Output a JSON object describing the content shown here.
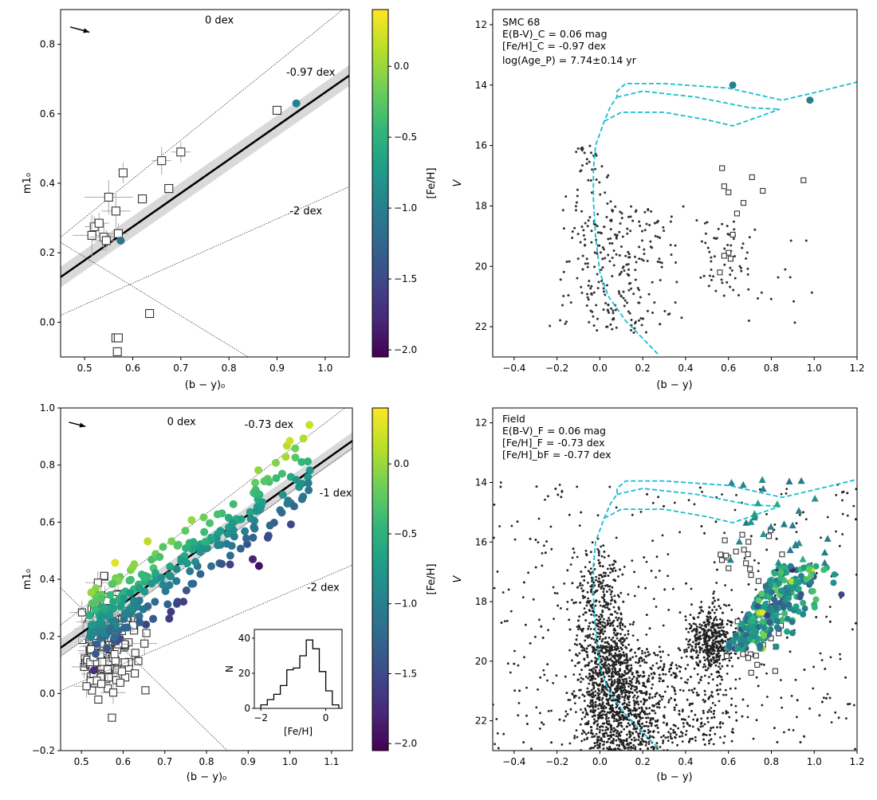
{
  "chart_data": [
    {
      "id": "top_left",
      "type": "scatter",
      "xlabel": "(b − y)₀",
      "ylabel": "m1₀",
      "xlim": [
        0.45,
        1.05
      ],
      "ylim": [
        -0.1,
        0.9
      ],
      "xticks": [
        0.5,
        0.6,
        0.7,
        0.8,
        0.9,
        1.0
      ],
      "yticks": [
        0.0,
        0.2,
        0.4,
        0.6,
        0.8
      ],
      "reference_lines": [
        {
          "label": "0 dex",
          "x1": 0.45,
          "y1": 0.245,
          "x2": 1.05,
          "y2": 0.915,
          "label_x": 0.78,
          "label_y": 0.86
        },
        {
          "label": "-0.97 dex",
          "x1": 0.45,
          "y1": 0.13,
          "x2": 1.05,
          "y2": 0.71,
          "label_x": 0.97,
          "label_y": 0.71,
          "fit": true
        },
        {
          "label": "-2 dex",
          "x1": 0.45,
          "y1": 0.02,
          "x2": 1.05,
          "y2": 0.39,
          "label_x": 0.96,
          "label_y": 0.31
        }
      ],
      "diagonal_cut": {
        "x1": 0.45,
        "y1": 0.23,
        "x2": 0.84,
        "y2": -0.1
      },
      "squares": [
        {
          "x": 0.58,
          "y": 0.43,
          "ex": 0.0,
          "ey": 0.03
        },
        {
          "x": 0.66,
          "y": 0.465,
          "ex": 0.02,
          "ey": 0.04
        },
        {
          "x": 0.7,
          "y": 0.49,
          "ex": 0.02,
          "ey": 0.03
        },
        {
          "x": 0.675,
          "y": 0.385,
          "ex": 0.0,
          "ey": 0.0
        },
        {
          "x": 0.55,
          "y": 0.36,
          "ex": 0.05,
          "ey": 0.05
        },
        {
          "x": 0.565,
          "y": 0.32,
          "ex": 0.03,
          "ey": 0.05
        },
        {
          "x": 0.62,
          "y": 0.355,
          "ex": 0.0,
          "ey": 0.0
        },
        {
          "x": 0.52,
          "y": 0.275,
          "ex": 0.02,
          "ey": 0.03
        },
        {
          "x": 0.53,
          "y": 0.285,
          "ex": 0.02,
          "ey": 0.03
        },
        {
          "x": 0.515,
          "y": 0.25,
          "ex": 0.04,
          "ey": 0.06
        },
        {
          "x": 0.54,
          "y": 0.245,
          "ex": 0.03,
          "ey": 0.04
        },
        {
          "x": 0.545,
          "y": 0.235,
          "ex": 0.03,
          "ey": 0.03
        },
        {
          "x": 0.57,
          "y": 0.255,
          "ex": 0.02,
          "ey": 0.03
        },
        {
          "x": 0.9,
          "y": 0.61,
          "ex": 0.0,
          "ey": 0.0
        },
        {
          "x": 0.635,
          "y": 0.025,
          "ex": 0.0,
          "ey": 0.0
        },
        {
          "x": 0.565,
          "y": -0.045,
          "ex": 0.0,
          "ey": 0.0
        },
        {
          "x": 0.57,
          "y": -0.045,
          "ex": 0.0,
          "ey": 0.0
        },
        {
          "x": 0.568,
          "y": -0.085,
          "ex": 0.0,
          "ey": 0.0
        }
      ],
      "colored_points": [
        {
          "x": 0.94,
          "y": 0.63,
          "feh": -0.97
        },
        {
          "x": 0.575,
          "y": 0.235,
          "feh": -1.1
        }
      ],
      "arrow": {
        "x1": 0.47,
        "y1": 0.85,
        "x2": 0.51,
        "y2": 0.835
      },
      "colorbar": {
        "label": "[Fe/H]",
        "min": -2.05,
        "max": 0.4,
        "ticks": [
          0.0,
          -0.5,
          -1.0,
          -1.5,
          -2.0
        ],
        "tick_labels": [
          "0.0",
          "−0.5",
          "−1.0",
          "−1.5",
          "−2.0"
        ]
      }
    },
    {
      "id": "top_right",
      "type": "scatter",
      "xlabel": "(b − y)",
      "ylabel": "V",
      "xlim": [
        -0.5,
        1.2
      ],
      "ylim": [
        23.0,
        11.5
      ],
      "xticks": [
        -0.4,
        -0.2,
        0.0,
        0.2,
        0.4,
        0.6,
        0.8,
        1.0,
        1.2
      ],
      "yticks": [
        12,
        14,
        16,
        18,
        20,
        22
      ],
      "annotations": [
        "SMC 68",
        "E(B-V)_C = 0.06 mag",
        "[Fe/H]_C = -0.97 dex",
        "log(Age_P) = 7.74±0.14 yr"
      ],
      "squares": [
        {
          "x": 0.57,
          "y": 16.75
        },
        {
          "x": 0.71,
          "y": 17.05
        },
        {
          "x": 0.95,
          "y": 17.15
        },
        {
          "x": 0.58,
          "y": 17.35
        },
        {
          "x": 0.6,
          "y": 17.55
        },
        {
          "x": 0.76,
          "y": 17.5
        },
        {
          "x": 0.67,
          "y": 17.9
        },
        {
          "x": 0.64,
          "y": 18.25
        },
        {
          "x": 0.62,
          "y": 18.95
        },
        {
          "x": 0.6,
          "y": 19.55
        },
        {
          "x": 0.61,
          "y": 19.75
        },
        {
          "x": 0.58,
          "y": 19.65
        },
        {
          "x": 0.56,
          "y": 20.2
        }
      ],
      "colored_points": [
        {
          "x": 0.62,
          "y": 14.0,
          "feh": -0.97
        },
        {
          "x": 0.98,
          "y": 14.5,
          "feh": -0.97
        }
      ],
      "isochrone": [
        {
          "x": 0.27,
          "y": 22.9
        },
        {
          "x": 0.12,
          "y": 21.8
        },
        {
          "x": 0.04,
          "y": 21.0
        },
        {
          "x": 0.0,
          "y": 20.2
        },
        {
          "x": -0.02,
          "y": 19.0
        },
        {
          "x": -0.03,
          "y": 17.8
        },
        {
          "x": -0.03,
          "y": 16.8
        },
        {
          "x": -0.02,
          "y": 16.0
        },
        {
          "x": 0.02,
          "y": 15.2
        },
        {
          "x": 0.05,
          "y": 14.7
        },
        {
          "x": 0.08,
          "y": 14.4
        },
        {
          "x": 0.08,
          "y": 14.2
        },
        {
          "x": 0.12,
          "y": 13.95
        },
        {
          "x": 0.3,
          "y": 13.95
        },
        {
          "x": 0.6,
          "y": 14.1
        },
        {
          "x": 0.85,
          "y": 14.5
        },
        {
          "x": 1.0,
          "y": 14.25
        },
        {
          "x": 1.2,
          "y": 13.9
        }
      ],
      "isochrone2": [
        {
          "x": 0.08,
          "y": 14.4
        },
        {
          "x": 0.2,
          "y": 14.2
        },
        {
          "x": 0.45,
          "y": 14.4
        },
        {
          "x": 0.7,
          "y": 14.75
        },
        {
          "x": 0.84,
          "y": 14.8
        }
      ],
      "isochrone3": [
        {
          "x": 0.02,
          "y": 15.2
        },
        {
          "x": 0.1,
          "y": 14.9
        },
        {
          "x": 0.3,
          "y": 14.9
        },
        {
          "x": 0.5,
          "y": 15.15
        },
        {
          "x": 0.62,
          "y": 15.35
        },
        {
          "x": 0.72,
          "y": 15.1
        },
        {
          "x": 0.84,
          "y": 14.8
        }
      ]
    },
    {
      "id": "bottom_left",
      "type": "scatter",
      "xlabel": "(b − y)₀",
      "ylabel": "m1₀",
      "xlim": [
        0.45,
        1.15
      ],
      "ylim": [
        -0.2,
        1.0
      ],
      "xticks": [
        0.5,
        0.6,
        0.7,
        0.8,
        0.9,
        1.0,
        1.1
      ],
      "yticks": [
        -0.2,
        0.0,
        0.2,
        0.4,
        0.6,
        0.8,
        1.0
      ],
      "reference_lines": [
        {
          "label": "0 dex",
          "x1": 0.45,
          "y1": 0.24,
          "x2": 1.15,
          "y2": 1.02,
          "label_x": 0.74,
          "label_y": 0.94
        },
        {
          "label": "-0.73 dex",
          "x1": 0.45,
          "y1": 0.16,
          "x2": 1.15,
          "y2": 0.885,
          "label_x": 0.95,
          "label_y": 0.93,
          "fit": true
        },
        {
          "label": "-1 dex",
          "x1": 0.45,
          "y1": 0.13,
          "x2": 1.15,
          "y2": 0.86,
          "label_x": 1.11,
          "label_y": 0.69
        },
        {
          "label": "-2 dex",
          "x1": 0.45,
          "y1": 0.01,
          "x2": 1.15,
          "y2": 0.45,
          "label_x": 1.08,
          "label_y": 0.36
        }
      ],
      "diagonal_cut": {
        "x1": 0.45,
        "y1": 0.37,
        "x2": 0.85,
        "y2": -0.2
      },
      "arrow": {
        "x1": 0.47,
        "y1": 0.95,
        "x2": 0.51,
        "y2": 0.935
      },
      "inset": {
        "xlabel": "[Fe/H]",
        "ylabel": "N",
        "xlim": [
          -2.2,
          0.5
        ],
        "ylim": [
          0,
          45
        ],
        "xticks": [
          -2,
          0
        ],
        "yticks": [
          0,
          20,
          40
        ],
        "bins": [
          {
            "x0": -2.0,
            "x1": -1.8,
            "n": 2
          },
          {
            "x0": -1.8,
            "x1": -1.6,
            "n": 5
          },
          {
            "x0": -1.6,
            "x1": -1.4,
            "n": 8
          },
          {
            "x0": -1.4,
            "x1": -1.2,
            "n": 13
          },
          {
            "x0": -1.2,
            "x1": -1.0,
            "n": 22
          },
          {
            "x0": -1.0,
            "x1": -0.8,
            "n": 23
          },
          {
            "x0": -0.8,
            "x1": -0.6,
            "n": 30
          },
          {
            "x0": -0.6,
            "x1": -0.4,
            "n": 39
          },
          {
            "x0": -0.4,
            "x1": -0.2,
            "n": 34
          },
          {
            "x0": -0.2,
            "x1": 0.0,
            "n": 21
          },
          {
            "x0": 0.0,
            "x1": 0.2,
            "n": 10
          },
          {
            "x0": 0.2,
            "x1": 0.4,
            "n": 2
          }
        ]
      },
      "colorbar": {
        "label": "[Fe/H]",
        "min": -2.05,
        "max": 0.4,
        "ticks": [
          0.0,
          -0.5,
          -1.0,
          -1.5,
          -2.0
        ],
        "tick_labels": [
          "0.0",
          "−0.5",
          "−1.0",
          "−1.5",
          "−2.0"
        ]
      }
    },
    {
      "id": "bottom_right",
      "type": "scatter",
      "xlabel": "(b − y)",
      "ylabel": "V",
      "xlim": [
        -0.5,
        1.2
      ],
      "ylim": [
        23.0,
        11.5
      ],
      "xticks": [
        -0.4,
        -0.2,
        0.0,
        0.2,
        0.4,
        0.6,
        0.8,
        1.0,
        1.2
      ],
      "yticks": [
        12,
        14,
        16,
        18,
        20,
        22
      ],
      "annotations": [
        "Field",
        "E(B-V)_F = 0.06 mag",
        "[Fe/H]_F = -0.73 dex",
        "[Fe/H]_bF = -0.77 dex"
      ],
      "isochrone": [
        {
          "x": 0.27,
          "y": 22.9
        },
        {
          "x": 0.12,
          "y": 21.8
        },
        {
          "x": 0.04,
          "y": 21.0
        },
        {
          "x": 0.0,
          "y": 20.2
        },
        {
          "x": -0.02,
          "y": 19.0
        },
        {
          "x": -0.03,
          "y": 17.8
        },
        {
          "x": -0.03,
          "y": 16.8
        },
        {
          "x": -0.02,
          "y": 16.0
        },
        {
          "x": 0.02,
          "y": 15.2
        },
        {
          "x": 0.05,
          "y": 14.7
        },
        {
          "x": 0.08,
          "y": 14.4
        },
        {
          "x": 0.08,
          "y": 14.2
        },
        {
          "x": 0.12,
          "y": 13.95
        },
        {
          "x": 0.3,
          "y": 13.95
        },
        {
          "x": 0.6,
          "y": 14.1
        },
        {
          "x": 0.85,
          "y": 14.5
        },
        {
          "x": 1.0,
          "y": 14.25
        },
        {
          "x": 1.2,
          "y": 13.9
        }
      ],
      "isochrone2": [
        {
          "x": 0.08,
          "y": 14.4
        },
        {
          "x": 0.2,
          "y": 14.2
        },
        {
          "x": 0.45,
          "y": 14.4
        },
        {
          "x": 0.7,
          "y": 14.75
        },
        {
          "x": 0.84,
          "y": 14.8
        }
      ],
      "isochrone3": [
        {
          "x": 0.02,
          "y": 15.2
        },
        {
          "x": 0.1,
          "y": 14.9
        },
        {
          "x": 0.3,
          "y": 14.9
        },
        {
          "x": 0.5,
          "y": 15.15
        },
        {
          "x": 0.62,
          "y": 15.35
        },
        {
          "x": 0.72,
          "y": 15.1
        },
        {
          "x": 0.84,
          "y": 14.8
        }
      ]
    }
  ],
  "colors": {
    "fit_band": "#cccccc",
    "isochrone": "#17becf",
    "viridis": [
      "#440154",
      "#482878",
      "#3e4989",
      "#31688e",
      "#26828e",
      "#1f9e89",
      "#35b779",
      "#6ece58",
      "#b5de2b",
      "#fde725"
    ]
  }
}
